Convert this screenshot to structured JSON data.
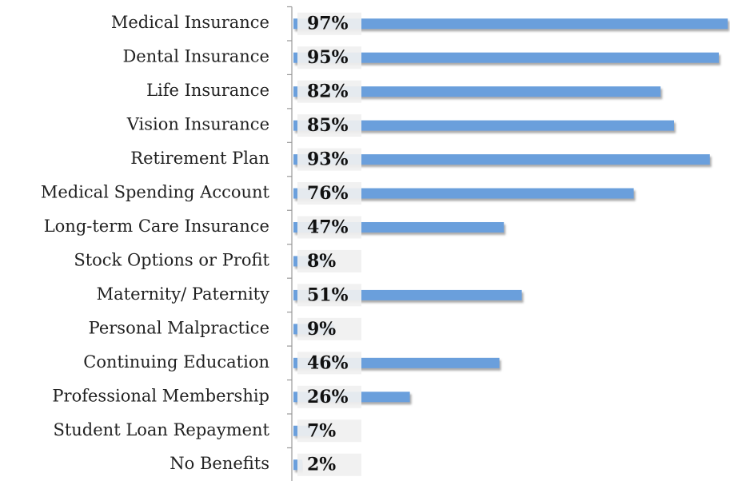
{
  "chart_data": {
    "type": "bar",
    "orientation": "horizontal",
    "categories": [
      "Medical Insurance",
      "Dental Insurance",
      "Life Insurance",
      "Vision Insurance",
      "Retirement Plan",
      "Medical Spending Account",
      "Long-term Care Insurance",
      "Stock Options or Profit",
      "Maternity/ Paternity",
      "Personal Malpractice",
      "Continuing Education",
      "Professional Membership",
      "Student Loan Repayment",
      "No Benefits"
    ],
    "values": [
      97,
      95,
      82,
      85,
      93,
      76,
      47,
      8,
      51,
      9,
      46,
      26,
      7,
      2
    ],
    "value_labels": [
      "97%",
      "95%",
      "82%",
      "85%",
      "93%",
      "76%",
      "47%",
      "8%",
      "51%",
      "9%",
      "46%",
      "26%",
      "7%",
      "2%"
    ],
    "color": "#6a9fdc",
    "xlim": [
      0,
      100
    ]
  }
}
